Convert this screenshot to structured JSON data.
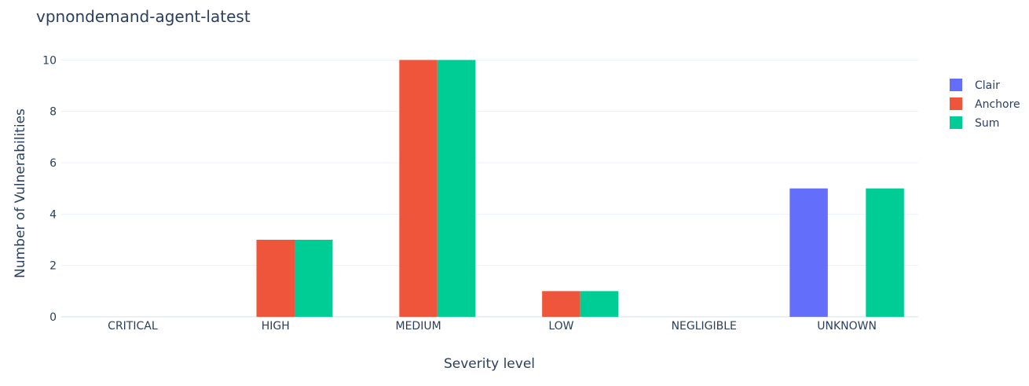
{
  "chart_data": {
    "type": "bar",
    "title": "vpnondemand-agent-latest",
    "xlabel": "Severity level",
    "ylabel": "Number of Vulnerabilities",
    "categories": [
      "CRITICAL",
      "HIGH",
      "MEDIUM",
      "LOW",
      "NEGLIGIBLE",
      "UNKNOWN"
    ],
    "series": [
      {
        "name": "Clair",
        "color": "#636efa",
        "values": [
          0,
          0,
          0,
          0,
          0,
          5
        ]
      },
      {
        "name": "Anchore",
        "color": "#ef553b",
        "values": [
          0,
          3,
          10,
          1,
          0,
          0
        ]
      },
      {
        "name": "Sum",
        "color": "#00cc96",
        "values": [
          0,
          3,
          10,
          1,
          0,
          5
        ]
      }
    ],
    "ylim": [
      0,
      10.5
    ],
    "yticks": [
      0,
      2,
      4,
      6,
      8,
      10
    ],
    "grid": true,
    "legend_position": "top-right"
  }
}
